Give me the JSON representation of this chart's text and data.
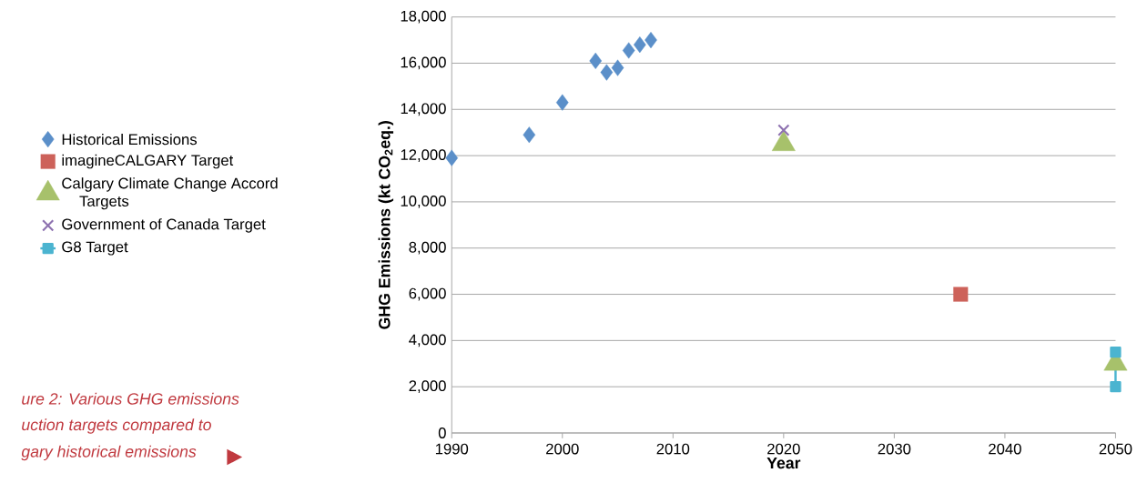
{
  "chart_data": {
    "type": "scatter",
    "xlabel": "Year",
    "ylabel": "GHG Emissions (kt CO$_{2}$eq.)",
    "xlim": [
      1990,
      2050
    ],
    "xticks": [
      1990,
      2000,
      2010,
      2020,
      2030,
      2040,
      2050
    ],
    "ylim": [
      0,
      18000
    ],
    "yticks": [
      0,
      {
        "value": 2000,
        "label": "2,000"
      },
      {
        "value": 4000,
        "label": "4,000"
      },
      {
        "value": 6000,
        "label": "6,000"
      },
      {
        "value": 8000,
        "label": "8,000"
      },
      {
        "value": 10000,
        "label": "10,000"
      },
      {
        "value": 12000,
        "label": "12,000"
      },
      {
        "value": 14000,
        "label": "14,000"
      },
      {
        "value": 16000,
        "label": "16,000"
      },
      {
        "value": 18000,
        "label": "18,000"
      }
    ],
    "grid": "y",
    "legend": "left",
    "series": [
      {
        "name": "Historical Emissions",
        "color": "#5b8fc9",
        "marker": "diamond",
        "x": [
          1990,
          1997,
          2000,
          2003,
          2004,
          2005,
          2006,
          2007,
          2008
        ],
        "values": [
          11900,
          12900,
          14300,
          16100,
          15600,
          15800,
          16550,
          16800,
          17000
        ]
      },
      {
        "name": "imagineCALGARY Target",
        "color": "#cd625a",
        "marker": "square",
        "x": [
          2036
        ],
        "values": [
          6000
        ]
      },
      {
        "name": "Calgary Climate Change Accord Targets",
        "color": "#a7c16b",
        "marker": "triangle",
        "x": [
          2020,
          2050
        ],
        "values": [
          12500,
          3000
        ]
      },
      {
        "name": "Government of Canada Target",
        "color": "#8e72b0",
        "marker": "cross",
        "x": [
          2020
        ],
        "values": [
          13100
        ]
      },
      {
        "name": "G8 Target",
        "type": "line",
        "color": "#4bb4d0",
        "marker": "square",
        "x": [
          2050,
          2050
        ],
        "values": [
          2000,
          3500
        ]
      }
    ],
    "annotations": [
      "ure 2: Various GHG emissions",
      "uction targets compared to",
      "gary historical emissions"
    ]
  }
}
